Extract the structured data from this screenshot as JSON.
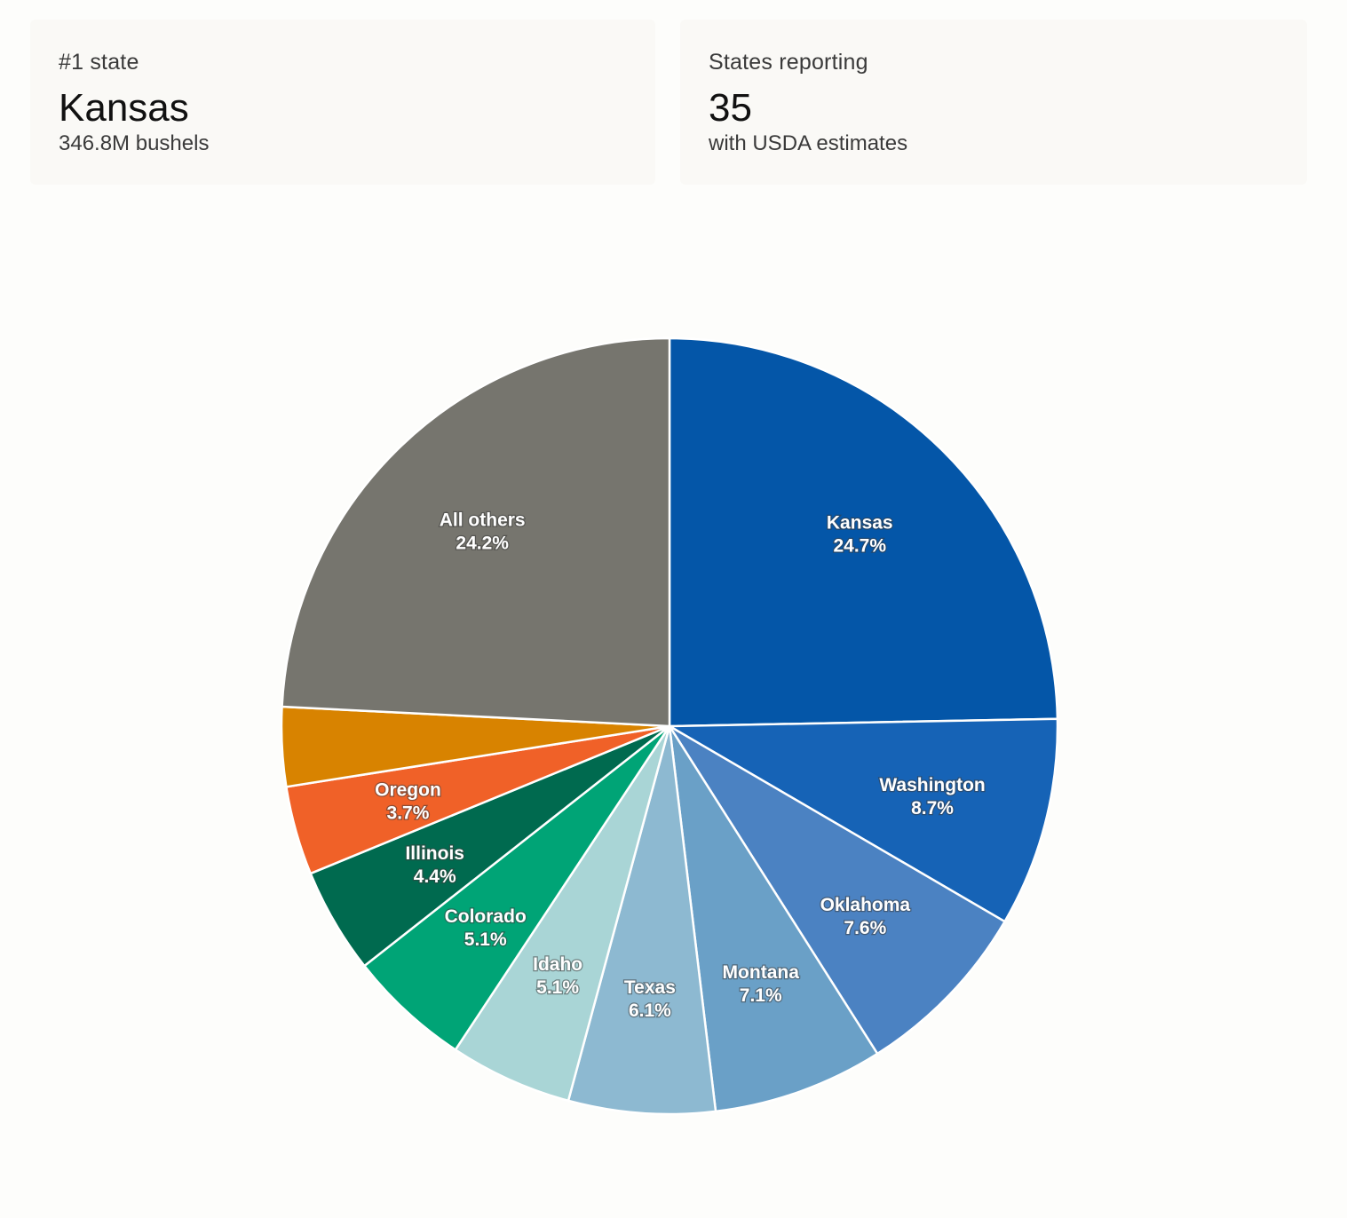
{
  "cards": [
    {
      "label": "#1 state",
      "value": "Kansas",
      "sub": "346.8M bushels"
    },
    {
      "label": "States reporting",
      "value": "35",
      "sub": "with USDA estimates"
    }
  ],
  "chart_data": {
    "type": "pie",
    "start": "12 o'clock, clockwise",
    "slices": [
      {
        "name": "Kansas",
        "value": 24.7,
        "label": "24.7%",
        "color": "#0456a8"
      },
      {
        "name": "Washington",
        "value": 8.7,
        "label": "8.7%",
        "color": "#1663b6"
      },
      {
        "name": "Oklahoma",
        "value": 7.6,
        "label": "7.6%",
        "color": "#4b82c2"
      },
      {
        "name": "Montana",
        "value": 7.1,
        "label": "7.1%",
        "color": "#6aa0c7"
      },
      {
        "name": "Texas",
        "value": 6.1,
        "label": "6.1%",
        "color": "#8db9d1"
      },
      {
        "name": "Idaho",
        "value": 5.1,
        "label": "5.1%",
        "color": "#a9d5d6"
      },
      {
        "name": "Colorado",
        "value": 5.1,
        "label": "5.1%",
        "color": "#00a476"
      },
      {
        "name": "Illinois",
        "value": 4.4,
        "label": "4.4%",
        "color": "#006a4f"
      },
      {
        "name": "Oregon",
        "value": 3.7,
        "label": "3.7%",
        "color": "#f06128"
      },
      {
        "name": "",
        "value": 3.3,
        "label": "",
        "color": "#d88300"
      },
      {
        "name": "All others",
        "value": 24.2,
        "label": "24.2%",
        "color": "#76756e"
      }
    ]
  }
}
